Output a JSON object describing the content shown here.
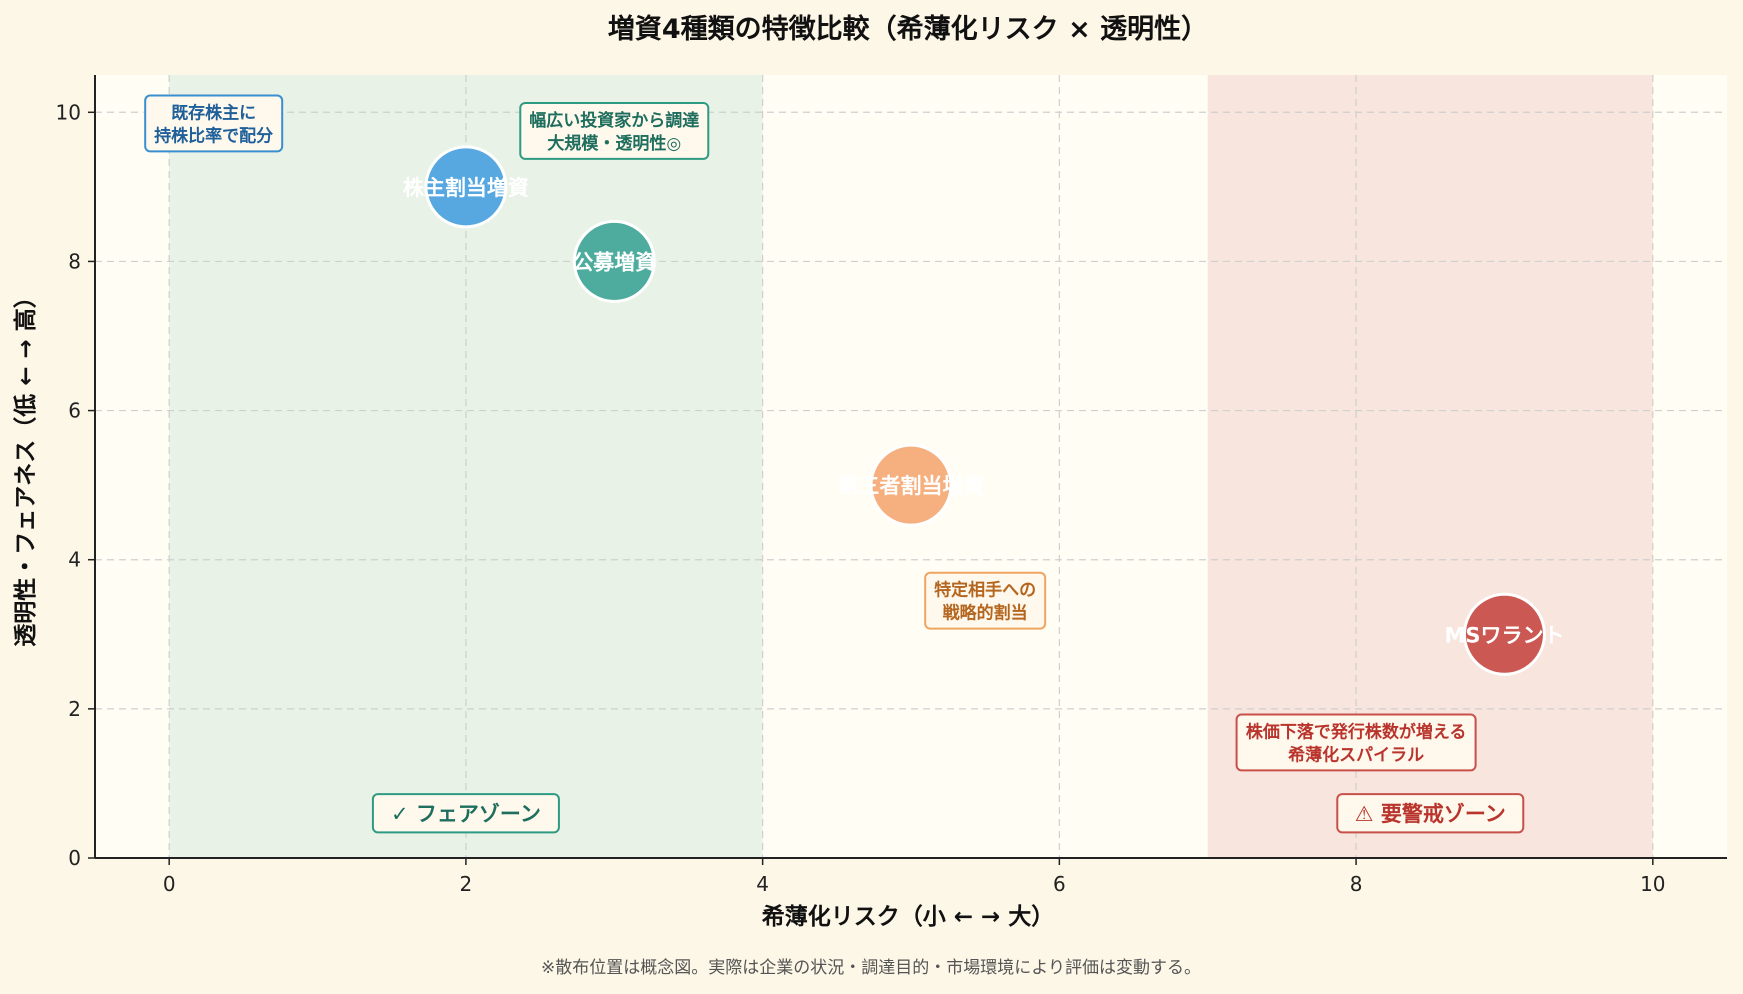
{
  "chart_data": {
    "type": "scatter",
    "title": "増資4種類の特徴比較（希薄化リスク × 透明性）",
    "xlabel": "希薄化リスク（小 ← → 大）",
    "ylabel": "透明性・フェアネス（低 ← → 高）",
    "xlim": [
      -0.5,
      10.5
    ],
    "ylim": [
      0,
      10.5
    ],
    "xticks": [
      0,
      2,
      4,
      6,
      8,
      10
    ],
    "yticks": [
      0,
      2,
      4,
      6,
      8,
      10
    ],
    "grid": true,
    "points": [
      {
        "label": "株主割当増資",
        "x": 2,
        "y": 9,
        "color": "#4fa3e0"
      },
      {
        "label": "公募増資",
        "x": 3,
        "y": 8,
        "color": "#44a899"
      },
      {
        "label": "第三者割当増資",
        "x": 5,
        "y": 5,
        "color": "#f5ac78"
      },
      {
        "label": "MSワラント",
        "x": 9,
        "y": 3,
        "color": "#c8504a"
      }
    ],
    "annotations": [
      {
        "lines": [
          "既存株主に",
          "持株比率で配分"
        ],
        "x": 0.3,
        "y": 9.85,
        "color": "#1f5f9a",
        "border": "#3a8fd0"
      },
      {
        "lines": [
          "幅広い投資家から調達",
          "大規模・透明性◎"
        ],
        "x": 3.0,
        "y": 9.75,
        "color": "#1e6e5e",
        "border": "#2e9a82"
      },
      {
        "lines": [
          "特定相手への",
          "戦略的割当"
        ],
        "x": 5.5,
        "y": 3.45,
        "color": "#b4661f",
        "border": "#eea562"
      },
      {
        "lines": [
          "株価下落で発行株数が増える",
          "希薄化スパイラル"
        ],
        "x": 8.0,
        "y": 1.55,
        "color": "#b8342c",
        "border": "#c8504a"
      }
    ],
    "zones": [
      {
        "label": "✓ フェアゾーン",
        "x_range": [
          0,
          4
        ],
        "fill": "#e4f0e4",
        "text_color": "#1e6e5e",
        "border": "#2e9a82",
        "label_x": 2.0,
        "label_y": 0.6
      },
      {
        "label": "⚠ 要警戒ゾーン",
        "x_range": [
          7,
          10
        ],
        "fill": "#f6e1d9",
        "text_color": "#b8342c",
        "border": "#c8504a",
        "label_x": 8.5,
        "label_y": 0.6
      }
    ],
    "footnote": "※散布位置は概念図。実際は企業の状況・調達目的・市場環境により評価は変動する。"
  }
}
